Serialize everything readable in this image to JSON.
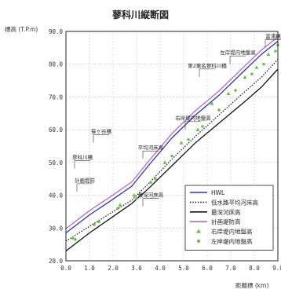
{
  "chart_data": {
    "type": "line",
    "title": "蓼科川縦断図",
    "ylabel": "標高 (T.P.m)",
    "xlabel": "距離標 (km)",
    "xlim": [
      0,
      9
    ],
    "ylim": [
      20,
      90
    ],
    "xticks": [
      "0.0",
      "1.0",
      "2.0",
      "3.0",
      "4.0",
      "5.0",
      "6.0",
      "7.0",
      "8.0",
      "9.0"
    ],
    "yticks": [
      "20.0",
      "30.0",
      "40.0",
      "50.0",
      "60.0",
      "70.0",
      "80.0",
      "90.0"
    ],
    "grid": true,
    "legend_position": "bottom-right",
    "series": [
      {
        "name": "HWL",
        "style": "solid",
        "color": "#3030c8",
        "marker": "",
        "x": [
          0,
          1,
          2,
          2.8,
          3.5,
          4.5,
          5.5,
          6.5,
          7.5,
          8.3,
          9
        ],
        "y": [
          28.5,
          34,
          38.8,
          42.8,
          49,
          57.5,
          64.5,
          70.5,
          77.5,
          83,
          87
        ]
      },
      {
        "name": "低水路平均河床高",
        "style": "dotted",
        "color": "#222222",
        "marker": "",
        "x": [
          0,
          1,
          2,
          2.8,
          3.5,
          4.5,
          5.5,
          6.5,
          7.5,
          8.3,
          9
        ],
        "y": [
          26,
          30.5,
          35,
          38.5,
          43.5,
          51,
          58,
          64.5,
          71,
          76,
          81.5
        ]
      },
      {
        "name": "最深河床高",
        "style": "solid",
        "color": "#111111",
        "marker": "",
        "x": [
          0,
          1,
          2,
          2.8,
          3.5,
          4.5,
          5.5,
          6.5,
          7.5,
          8.3,
          9
        ],
        "y": [
          23,
          28.5,
          33.5,
          37.5,
          42,
          49,
          56,
          62,
          68,
          73,
          78.5
        ]
      },
      {
        "name": "計画堤防高",
        "style": "solid",
        "color": "#b070b0",
        "marker": "",
        "x": [
          0,
          1,
          2,
          2.8,
          3.5,
          4.5,
          5.5,
          6.5,
          7.5,
          8.3,
          9
        ],
        "y": [
          29.8,
          35.3,
          40.1,
          44.1,
          50.3,
          58.8,
          65.8,
          71.8,
          78.8,
          84.3,
          88.3
        ]
      },
      {
        "name": "右岸堤内地盤高",
        "style": "none",
        "color": "#66bb44",
        "marker": "triangle",
        "x": [
          0.3,
          1.4,
          2.3,
          2.9,
          3.6,
          4.2,
          4.9,
          5.6,
          6.2,
          6.9,
          7.6,
          8.1,
          8.6,
          9.0
        ],
        "y": [
          27,
          32,
          37,
          40,
          44,
          50,
          56,
          60,
          68,
          71,
          76,
          79,
          83,
          86
        ]
      },
      {
        "name": "左岸堤内地盤高",
        "style": "none",
        "color": "#66bb44",
        "marker": "dot",
        "x": [
          0.4,
          1.2,
          2.2,
          3.0,
          3.8,
          4.5,
          5.2,
          5.8,
          6.5,
          7.2,
          7.9,
          8.4,
          8.9
        ],
        "y": [
          26.5,
          31,
          36,
          39,
          45,
          52,
          57,
          61,
          66,
          72,
          77,
          80,
          84
        ]
      }
    ],
    "annotations": [
      {
        "text": "蓼科川橋",
        "x": 0.7,
        "y": 51
      },
      {
        "text": "計画堤防",
        "x": 0.8,
        "y": 44
      },
      {
        "text": "笹ヶ谷橋",
        "x": 1.5,
        "y": 59
      },
      {
        "text": "平均河床高",
        "x": 3.6,
        "y": 54
      },
      {
        "text": "最深河床高",
        "x": 3.6,
        "y": 39.5
      },
      {
        "text": "右岸堤内地盤高",
        "x": 5.4,
        "y": 63
      },
      {
        "text": "第2東名蓼科川橋",
        "x": 6.0,
        "y": 79
      },
      {
        "text": "左岸堤内地盤高",
        "x": 7.3,
        "y": 83
      },
      {
        "text": "富澤橋",
        "x": 8.8,
        "y": 88
      }
    ]
  }
}
